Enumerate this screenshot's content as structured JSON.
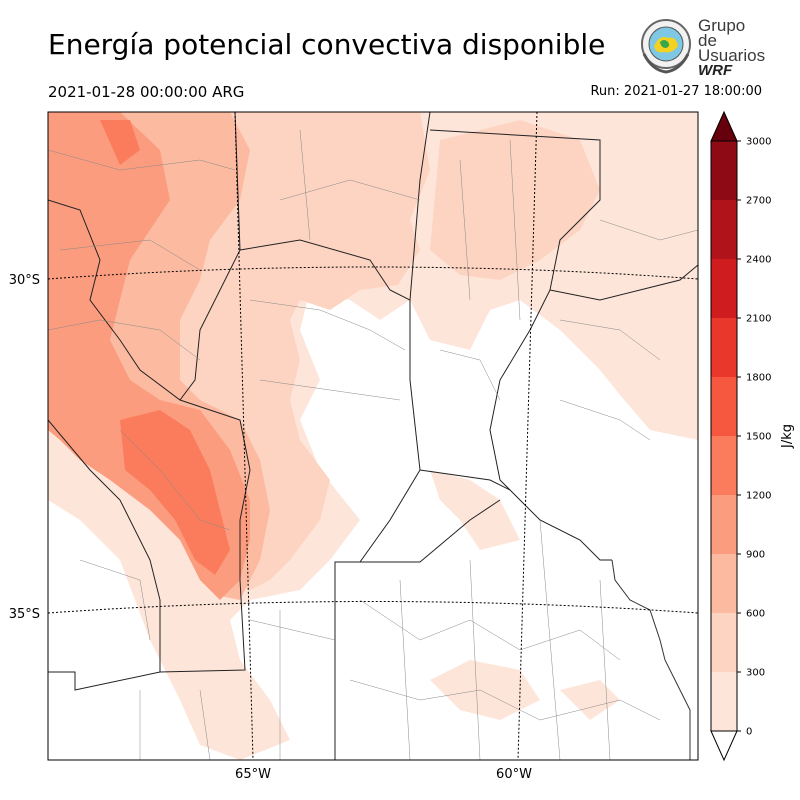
{
  "title": "Energía potencial convectiva disponible",
  "valid_time": "2021-01-28 00:00:00 ARG",
  "run_time": "Run: 2021-01-27 18:00:00",
  "logo": {
    "line1": "Grupo de",
    "line2": "Usuarios",
    "line3": "WRF"
  },
  "map": {
    "lat_labels": [
      "30°S",
      "35°S"
    ],
    "lon_labels": [
      "65°W",
      "60°W"
    ]
  },
  "colorbar": {
    "unit": "J/kg",
    "levels": [
      "0",
      "300",
      "600",
      "900",
      "1200",
      "1500",
      "1800",
      "2100",
      "2400",
      "2700",
      "3000"
    ],
    "colors": [
      "#fee5d9",
      "#fdd4c2",
      "#fcbba1",
      "#fc9c7f",
      "#fb7c5c",
      "#f5583f",
      "#e9372c",
      "#cf1c1f",
      "#b1131b",
      "#8e0b15"
    ],
    "under_color": "#ffffff",
    "over_color": "#67000d"
  }
}
